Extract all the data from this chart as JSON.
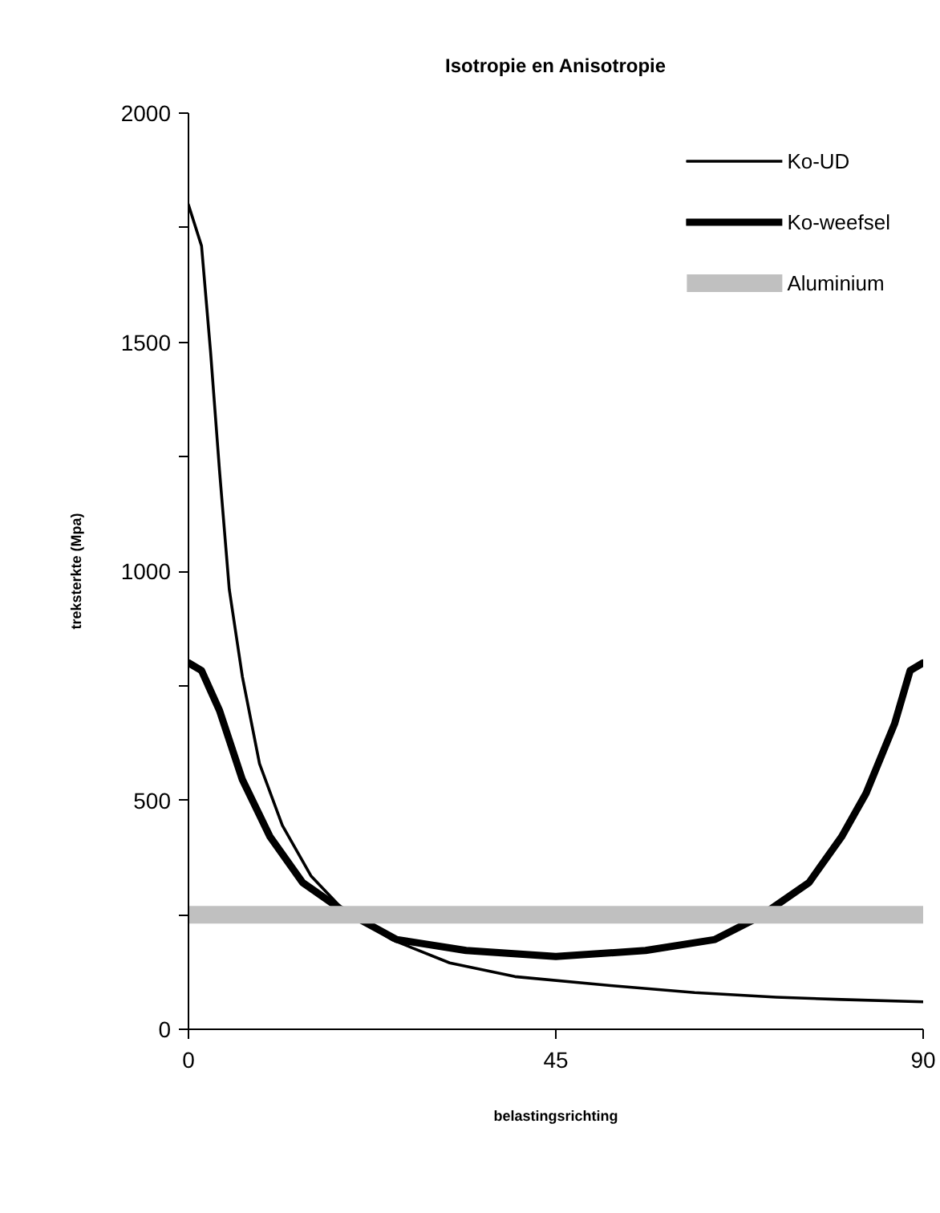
{
  "chart_data": {
    "type": "line",
    "title": "Isotropie en Anisotropie",
    "xlabel": "belastingsrichting",
    "ylabel": "treksterkte (Mpa)",
    "xlim": [
      0,
      90
    ],
    "xticks": [
      0,
      45,
      90
    ],
    "ylim": [
      0,
      2000
    ],
    "yticks": [
      0,
      {
        "value": 250,
        "label": null
      },
      500,
      {
        "value": 750,
        "label": null
      },
      1000,
      {
        "value": 1250,
        "label": null
      },
      1500,
      {
        "value": 1750,
        "label": null
      },
      2000
    ],
    "grid": false,
    "legend": "top right",
    "marker": "none",
    "series": [
      {
        "name": "Ko-UD",
        "color": "#000000",
        "x": [
          0,
          1.6,
          2.7,
          3.8,
          5,
          6.6,
          8.7,
          11.5,
          15,
          19,
          25,
          32,
          40,
          52,
          62,
          72,
          80,
          90
        ],
        "values": [
          1800,
          1710,
          1480,
          1220,
          960,
          770,
          580,
          445,
          335,
          260,
          195,
          145,
          115,
          95,
          80,
          70,
          65,
          60
        ]
      },
      {
        "name": "Ko-weefsel",
        "color": "#000000",
        "x": [
          0,
          1.6,
          3.8,
          6.6,
          10,
          14,
          18.5,
          25.5,
          34,
          45,
          56,
          64.5,
          70,
          76,
          80,
          83,
          86.5,
          88.4,
          90
        ],
        "values": [
          800,
          783,
          696,
          545,
          420,
          320,
          264,
          196,
          172,
          159,
          172,
          196,
          246,
          320,
          420,
          515,
          667,
          783,
          800
        ]
      },
      {
        "name": "Aluminium",
        "color": "#c0c0c0",
        "x": [
          0,
          90
        ],
        "values": [
          250,
          250
        ]
      }
    ]
  }
}
